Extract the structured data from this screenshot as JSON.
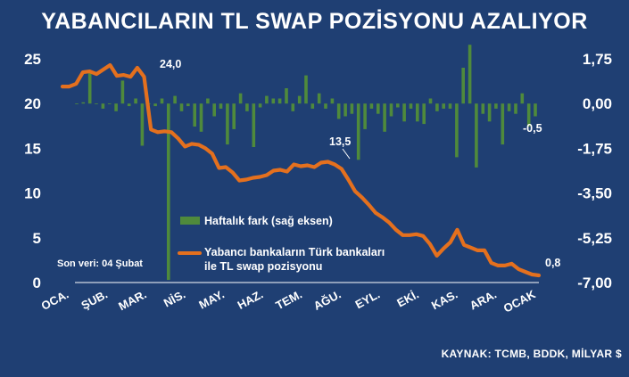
{
  "chart_data": {
    "type": "bar+line",
    "title": "YABANCILARIN TL SWAP POZİSYONU AZALIYOR",
    "source": "KAYNAK: TCMB, BDDK, MİLYAR $",
    "note": "Son veri: 04 Şubat",
    "left_axis": {
      "ylim": [
        0,
        25
      ],
      "ticks": [
        "0",
        "5",
        "10",
        "15",
        "20",
        "25"
      ]
    },
    "right_axis": {
      "ylim": [
        -7.0,
        1.75
      ],
      "ticks": [
        "-7,00",
        "-5,25",
        "-3,50",
        "-1,75",
        "0,00",
        "1,75"
      ]
    },
    "x_ticks": [
      "OCA.",
      "ŞUB.",
      "MAR.",
      "NİS.",
      "MAY.",
      "HAZ.",
      "TEM.",
      "AĞU.",
      "EYL.",
      "EKİ.",
      "KAS.",
      "ARA.",
      "OCAK"
    ],
    "series": [
      {
        "name": "Haftalık fark (sağ eksen)",
        "kind": "bar",
        "axis": "right",
        "color": "#4f8a3c",
        "values": [
          0.0,
          0.05,
          1.3,
          0.0,
          -0.2,
          0.0,
          -0.3,
          0.9,
          -0.1,
          0.2,
          -1.65,
          0.0,
          -0.1,
          0.2,
          -6.9,
          0.3,
          -0.3,
          -0.1,
          -0.9,
          -1.1,
          0.2,
          -0.5,
          -0.2,
          -1.6,
          -1.0,
          0.4,
          -0.3,
          -1.7,
          -0.15,
          0.3,
          0.2,
          0.2,
          0.6,
          -0.3,
          0.3,
          1.1,
          -0.2,
          0.4,
          -0.2,
          0.2,
          -0.6,
          -0.5,
          -0.4,
          -2.2,
          -1.0,
          -0.2,
          -0.4,
          -1.1,
          -0.5,
          -0.15,
          -0.7,
          -0.2,
          -0.7,
          -0.8,
          0.2,
          -0.3,
          -0.2,
          -0.2,
          -2.1,
          1.4,
          2.3,
          -2.5,
          -0.4,
          -0.7,
          -0.2,
          -1.6,
          -0.3,
          -0.4,
          0.4,
          -0.9,
          -0.5
        ]
      },
      {
        "name": "Yabancı bankaların Türk bankaları ile TL swap pozisyonu",
        "kind": "line",
        "axis": "left",
        "color": "#e4701e",
        "values": [
          21.9,
          21.9,
          22.2,
          23.5,
          23.6,
          23.3,
          23.8,
          24.3,
          23.1,
          23.2,
          23.0,
          24.0,
          23.0,
          17.1,
          16.8,
          16.9,
          16.8,
          16.1,
          15.2,
          15.5,
          15.4,
          15.0,
          14.4,
          12.8,
          12.9,
          12.3,
          11.4,
          11.5,
          11.7,
          11.8,
          12.0,
          12.5,
          12.6,
          12.4,
          13.2,
          13.0,
          13.1,
          12.9,
          13.4,
          13.5,
          13.2,
          12.7,
          11.5,
          10.2,
          9.5,
          8.7,
          7.8,
          7.3,
          6.7,
          5.9,
          5.3,
          5.3,
          5.4,
          5.2,
          4.3,
          3.0,
          3.8,
          4.5,
          5.9,
          4.2,
          3.9,
          3.6,
          3.6,
          2.2,
          1.9,
          1.9,
          2.1,
          1.5,
          1.2,
          0.9,
          0.8
        ]
      }
    ],
    "annotations": [
      "24,0",
      "13,5",
      "0,8",
      "-0,5"
    ],
    "legend_position": "center-left",
    "grid": false
  }
}
